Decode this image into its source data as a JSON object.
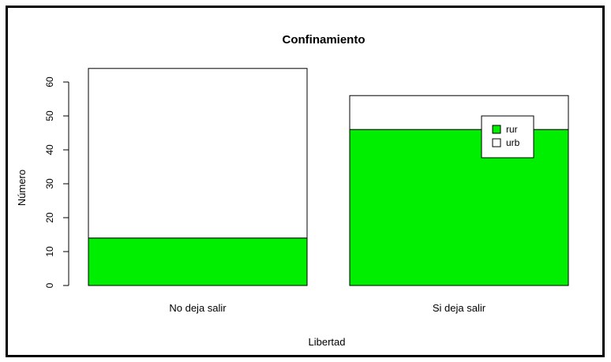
{
  "chart_data": {
    "type": "bar",
    "stacked": true,
    "title": "Confinamiento",
    "xlabel": "Libertad",
    "ylabel": "Número",
    "categories": [
      "No deja salir",
      "Si deja salir"
    ],
    "series": [
      {
        "name": "rur",
        "values": [
          14,
          46
        ],
        "color": "#00ee00"
      },
      {
        "name": "urb",
        "values": [
          50,
          10
        ],
        "color": "#ffffff"
      }
    ],
    "ylim": [
      0,
      60
    ],
    "yticks": [
      0,
      10,
      20,
      30,
      40,
      50,
      60
    ],
    "grid": false,
    "legend_position": "top-right"
  }
}
